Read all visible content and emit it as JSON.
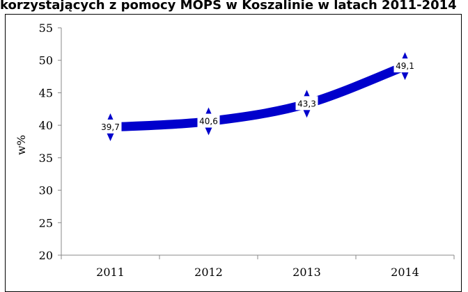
{
  "title": "korzystających z pomocy MOPS w Koszalinie w latach 2011-2014",
  "chart_data": {
    "type": "line",
    "title": "korzystających z pomocy MOPS w Koszalinie w latach 2011-2014",
    "xlabel": "",
    "ylabel": "w%",
    "categories": [
      "2011",
      "2012",
      "2013",
      "2014"
    ],
    "series": [
      {
        "values": [
          39.7,
          40.6,
          43.3,
          49.1
        ],
        "labels": [
          "39,7",
          "40,6",
          "43,3",
          "49,1"
        ],
        "color": "#0000CC"
      }
    ],
    "ylim": [
      20,
      55
    ],
    "yticks": [
      "20",
      "25",
      "30",
      "35",
      "40",
      "45",
      "50",
      "55"
    ],
    "grid": false,
    "legend": "none",
    "marker": "diamond",
    "smooth": true
  }
}
